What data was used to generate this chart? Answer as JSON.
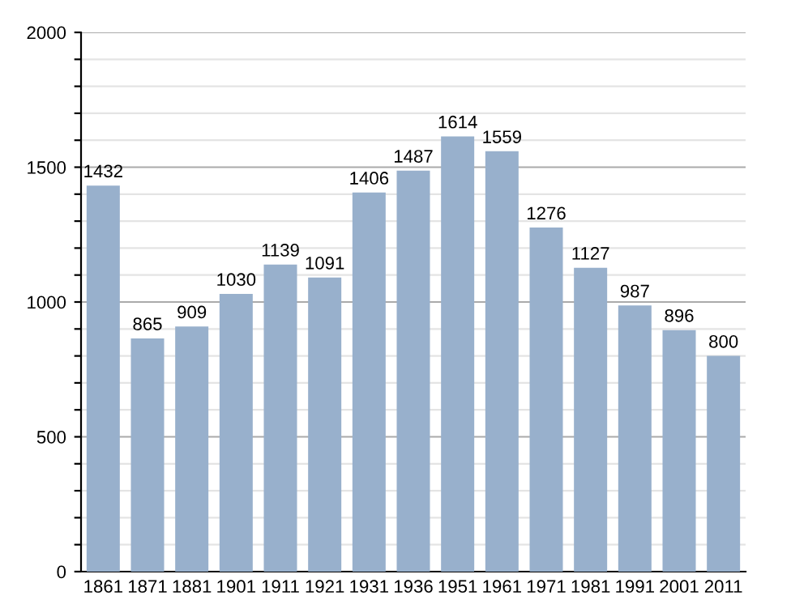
{
  "chart_data": {
    "type": "bar",
    "categories": [
      "1861",
      "1871",
      "1881",
      "1901",
      "1911",
      "1921",
      "1931",
      "1936",
      "1951",
      "1961",
      "1971",
      "1981",
      "1991",
      "2001",
      "2011"
    ],
    "values": [
      1432,
      865,
      909,
      1030,
      1139,
      1091,
      1406,
      1487,
      1614,
      1559,
      1276,
      1127,
      987,
      896,
      800
    ],
    "color": "#98b0cc",
    "ylim": [
      0,
      2000
    ],
    "yticks": [
      0,
      {
        "value": 100,
        "label": null
      },
      {
        "value": 200,
        "label": null
      },
      {
        "value": 300,
        "label": null
      },
      {
        "value": 400,
        "label": null
      },
      500,
      {
        "value": 600,
        "label": null
      },
      {
        "value": 700,
        "label": null
      },
      {
        "value": 800,
        "label": null
      },
      {
        "value": 900,
        "label": null
      },
      1000,
      {
        "value": 1100,
        "label": null
      },
      {
        "value": 1200,
        "label": null
      },
      {
        "value": 1300,
        "label": null
      },
      {
        "value": 1400,
        "label": null
      },
      1500,
      {
        "value": 1600,
        "label": null
      },
      {
        "value": 1700,
        "label": null
      },
      {
        "value": 1800,
        "label": null
      },
      {
        "value": 1900,
        "label": null
      },
      2000
    ],
    "grid": "y",
    "data_labels": true
  }
}
